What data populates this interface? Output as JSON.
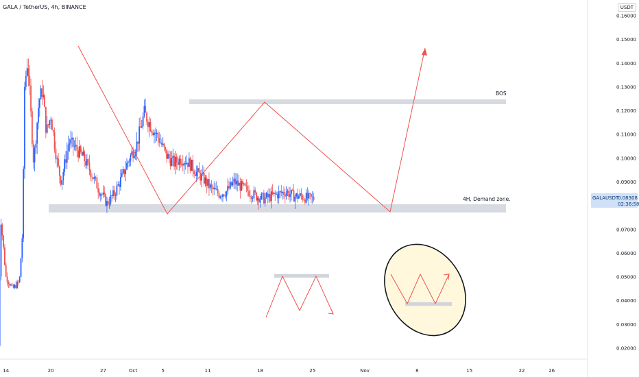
{
  "header": {
    "title": "GALA / TetherUS, 4h, BINANCE",
    "currency": "USDT"
  },
  "colors": {
    "up": "#2962ff",
    "down": "#ef5350",
    "zone": "#d1d4dc",
    "path": "#ef5350",
    "price_bg": "#cfe0f7"
  },
  "price_label": {
    "symbol": "GALAUSDT",
    "price": "0.08308",
    "countdown": "02:36:58"
  },
  "chart_data": {
    "type": "candlestick",
    "title": "GALA / TetherUS, 4h, BINANCE",
    "ylim": [
      0.015,
      0.165
    ],
    "y_ticks": [
      "0.16000",
      "0.15000",
      "0.14000",
      "0.13000",
      "0.12000",
      "0.11000",
      "0.10000",
      "0.09000",
      "0.08000",
      "0.07000",
      "0.06000",
      "0.05000",
      "0.04000",
      "0.03000",
      "0.02000"
    ],
    "x_ticks": [
      {
        "label": "14",
        "day": 0
      },
      {
        "label": "20",
        "day": 6
      },
      {
        "label": "27",
        "day": 13
      },
      {
        "label": "Oct",
        "day": 17
      },
      {
        "label": "5",
        "day": 21
      },
      {
        "label": "11",
        "day": 27
      },
      {
        "label": "18",
        "day": 34
      },
      {
        "label": "25",
        "day": 41
      },
      {
        "label": "Nov",
        "day": 48
      },
      {
        "label": "8",
        "day": 55
      },
      {
        "label": "15",
        "day": 62
      },
      {
        "label": "22",
        "day": 69
      },
      {
        "label": "26",
        "day": 73
      }
    ],
    "x_range_days": [
      -0.8,
      77.8
    ],
    "price_path": [
      {
        "day": -1.0,
        "p": 0.021
      },
      {
        "day": -0.7,
        "p": 0.075
      },
      {
        "day": 0.0,
        "p": 0.05
      },
      {
        "day": 0.9,
        "p": 0.045
      },
      {
        "day": 1.8,
        "p": 0.048
      },
      {
        "day": 2.2,
        "p": 0.068
      },
      {
        "day": 2.5,
        "p": 0.13
      },
      {
        "day": 2.9,
        "p": 0.142
      },
      {
        "day": 3.7,
        "p": 0.098
      },
      {
        "day": 4.4,
        "p": 0.124
      },
      {
        "day": 4.9,
        "p": 0.129
      },
      {
        "day": 5.4,
        "p": 0.111
      },
      {
        "day": 6.0,
        "p": 0.118
      },
      {
        "day": 6.9,
        "p": 0.097
      },
      {
        "day": 7.4,
        "p": 0.09
      },
      {
        "day": 8.4,
        "p": 0.107
      },
      {
        "day": 9.4,
        "p": 0.104
      },
      {
        "day": 10.4,
        "p": 0.1
      },
      {
        "day": 11.4,
        "p": 0.094
      },
      {
        "day": 12.4,
        "p": 0.087
      },
      {
        "day": 13.5,
        "p": 0.081
      },
      {
        "day": 14.5,
        "p": 0.085
      },
      {
        "day": 15.5,
        "p": 0.092
      },
      {
        "day": 16.5,
        "p": 0.1
      },
      {
        "day": 17.5,
        "p": 0.106
      },
      {
        "day": 18.5,
        "p": 0.119
      },
      {
        "day": 19.5,
        "p": 0.113
      },
      {
        "day": 20.5,
        "p": 0.108
      },
      {
        "day": 21.5,
        "p": 0.101
      },
      {
        "day": 22.5,
        "p": 0.098
      },
      {
        "day": 23.5,
        "p": 0.1
      },
      {
        "day": 24.5,
        "p": 0.098
      },
      {
        "day": 25.5,
        "p": 0.094
      },
      {
        "day": 26.5,
        "p": 0.091
      },
      {
        "day": 27.5,
        "p": 0.087
      },
      {
        "day": 28.5,
        "p": 0.085
      },
      {
        "day": 29.5,
        "p": 0.086
      },
      {
        "day": 30.5,
        "p": 0.09
      },
      {
        "day": 31.5,
        "p": 0.088
      },
      {
        "day": 32.5,
        "p": 0.086
      },
      {
        "day": 33.5,
        "p": 0.084
      },
      {
        "day": 34.5,
        "p": 0.083
      },
      {
        "day": 35.5,
        "p": 0.084
      },
      {
        "day": 36.5,
        "p": 0.085
      },
      {
        "day": 37.5,
        "p": 0.086
      },
      {
        "day": 38.5,
        "p": 0.084
      },
      {
        "day": 39.5,
        "p": 0.084
      },
      {
        "day": 40.5,
        "p": 0.083
      },
      {
        "day": 41.2,
        "p": 0.083
      }
    ],
    "annotations": [
      {
        "label": "BOS",
        "price": 0.1235
      },
      {
        "label": "4H, Demand zone.",
        "price": 0.077
      }
    ]
  }
}
